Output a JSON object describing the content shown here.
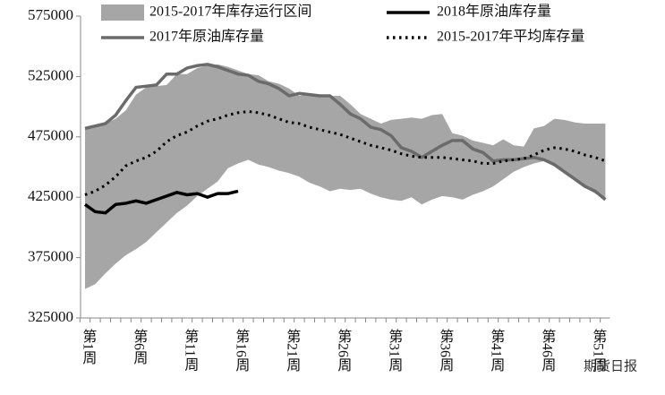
{
  "chart_data": {
    "type": "line",
    "categories": [
      "第1周",
      null,
      null,
      null,
      null,
      "第6周",
      null,
      null,
      null,
      null,
      "第11周",
      null,
      null,
      null,
      null,
      "第16周",
      null,
      null,
      null,
      null,
      "第21周",
      null,
      null,
      null,
      null,
      "第26周",
      null,
      null,
      null,
      null,
      "第31周",
      null,
      null,
      null,
      null,
      "第36周",
      null,
      null,
      null,
      null,
      "第41周",
      null,
      null,
      null,
      null,
      "第46周",
      null,
      null,
      null,
      null,
      "第51周",
      null
    ],
    "ylim": [
      325000,
      575000
    ],
    "yticks": [
      325000,
      375000,
      425000,
      475000,
      525000,
      575000
    ],
    "series": [
      {
        "name": "2015-2017年库存运行区间",
        "type": "range",
        "color": "#a6a6a6",
        "upper": [
          483000,
          484000,
          486000,
          490000,
          497000,
          510000,
          516000,
          517000,
          518000,
          527000,
          527000,
          532000,
          534000,
          535000,
          533000,
          530000,
          527000,
          526000,
          521000,
          519000,
          515000,
          509000,
          511000,
          510000,
          509000,
          509000,
          502000,
          494000,
          490000,
          486000,
          489000,
          490000,
          491000,
          490000,
          493000,
          494000,
          478000,
          476000,
          472000,
          470000,
          468000,
          473000,
          468000,
          467000,
          482000,
          484000,
          490000,
          489000,
          487000,
          486000,
          486000,
          486000
        ],
        "lower": [
          349000,
          353000,
          362000,
          370000,
          377000,
          382000,
          388000,
          396000,
          404000,
          412000,
          418000,
          426000,
          432000,
          438000,
          449000,
          453000,
          456000,
          452000,
          450000,
          447000,
          445000,
          442000,
          437000,
          434000,
          430000,
          432000,
          431000,
          432000,
          428000,
          425000,
          423000,
          422000,
          425000,
          419000,
          423000,
          426000,
          425000,
          423000,
          427000,
          430000,
          434000,
          440000,
          446000,
          450000,
          453000,
          455000,
          453000,
          447000,
          440000,
          433000,
          428000,
          423000
        ]
      },
      {
        "name": "2018年原油库存量",
        "color": "#000000",
        "style": "solid",
        "values": [
          419000,
          413000,
          412000,
          419000,
          420000,
          422000,
          420000,
          423000,
          426000,
          429000,
          427000,
          428000,
          425000,
          428000,
          428000,
          430000,
          null,
          null,
          null,
          null,
          null,
          null,
          null,
          null,
          null,
          null,
          null,
          null,
          null,
          null,
          null,
          null,
          null,
          null,
          null,
          null,
          null,
          null,
          null,
          null,
          null,
          null,
          null,
          null,
          null,
          null,
          null,
          null,
          null,
          null,
          null,
          null
        ]
      },
      {
        "name": "2017年原油库存量",
        "color": "#6b6b6b",
        "style": "solid",
        "values": [
          482000,
          484000,
          486000,
          493000,
          505000,
          516000,
          517000,
          518000,
          527000,
          527000,
          532000,
          534000,
          535000,
          533000,
          530000,
          527000,
          526000,
          521000,
          519000,
          515000,
          509000,
          511000,
          510000,
          509000,
          509000,
          502000,
          494000,
          490000,
          483000,
          481000,
          476000,
          466000,
          463000,
          458000,
          463000,
          468000,
          472000,
          472000,
          465000,
          462000,
          455000,
          456000,
          456000,
          457000,
          458000,
          456000,
          452000,
          446000,
          440000,
          434000,
          430000,
          423000
        ]
      },
      {
        "name": "2015-2017年平均库存量",
        "color": "#000000",
        "style": "dotted",
        "values": [
          427000,
          430000,
          435000,
          442000,
          451000,
          455000,
          458000,
          463000,
          471000,
          476000,
          479000,
          484000,
          488000,
          490000,
          493000,
          495000,
          496000,
          495000,
          493000,
          490000,
          487000,
          486000,
          483000,
          481000,
          479000,
          477000,
          474000,
          471000,
          468000,
          466000,
          464000,
          461000,
          459000,
          458000,
          458000,
          458000,
          457000,
          456000,
          455000,
          453000,
          453000,
          455000,
          456000,
          457000,
          460000,
          464000,
          466000,
          465000,
          463000,
          460000,
          458000,
          455000
        ]
      }
    ],
    "watermark": "期货日报"
  }
}
